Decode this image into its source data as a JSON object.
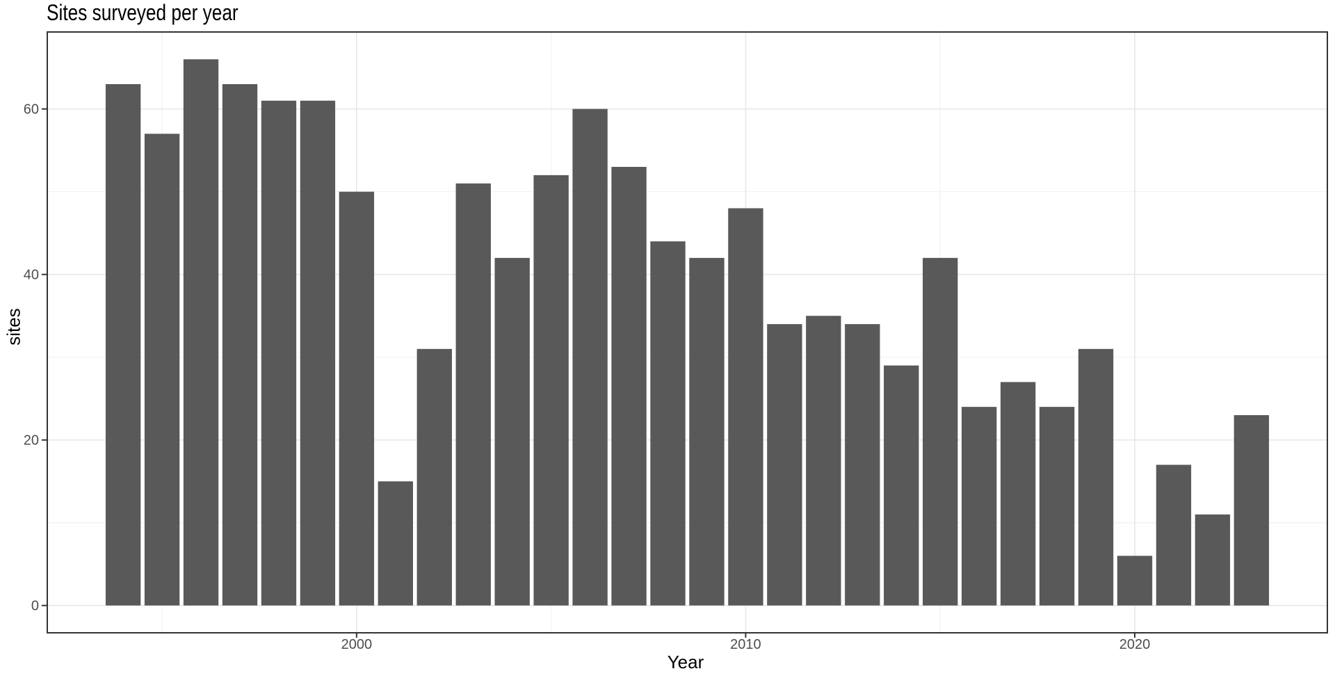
{
  "chart_data": {
    "type": "bar",
    "title": "Sites surveyed per year",
    "xlabel": "Year",
    "ylabel": "sites",
    "categories": [
      1994,
      1995,
      1996,
      1997,
      1998,
      1999,
      2000,
      2001,
      2002,
      2003,
      2004,
      2005,
      2006,
      2007,
      2008,
      2009,
      2010,
      2011,
      2012,
      2013,
      2014,
      2015,
      2016,
      2017,
      2018,
      2019,
      2020,
      2021,
      2022,
      2023
    ],
    "values": [
      63,
      57,
      66,
      63,
      61,
      61,
      50,
      15,
      31,
      51,
      42,
      52,
      60,
      53,
      44,
      42,
      48,
      34,
      35,
      34,
      29,
      42,
      24,
      27,
      24,
      31,
      6,
      17,
      11,
      23
    ],
    "x_ticks": [
      2000,
      2010,
      2020
    ],
    "x_minor_ticks": [
      1995,
      2005,
      2015
    ],
    "y_ticks": [
      0,
      20,
      40,
      60
    ],
    "y_minor_ticks": [
      10,
      30,
      50
    ],
    "xlim": [
      1992.05,
      2024.95
    ],
    "ylim": [
      -3.3,
      69.3
    ],
    "bar_rel_width": 0.9,
    "grid": "on",
    "legend": "none",
    "colors": {
      "bar": "#595959",
      "grid_major": "#e8e8e8",
      "grid_minor": "#f1f1f1",
      "panel_border": "#333333",
      "tick_mark": "#333333",
      "axis_text": "#4d4d4d",
      "title_text": "#000000",
      "background": "#ffffff"
    }
  }
}
